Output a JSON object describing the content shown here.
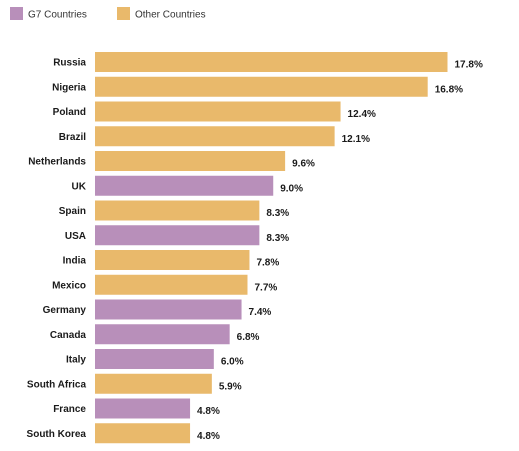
{
  "chart_data": {
    "type": "bar",
    "orientation": "horizontal",
    "title": "",
    "xlabel": "",
    "ylabel": "",
    "value_suffix": "%",
    "xlim": [
      0,
      18
    ],
    "grid": false,
    "legend_position": "top-left",
    "legend": [
      {
        "key": "g7",
        "label": "G7 Countries",
        "color": "#b88fba"
      },
      {
        "key": "other",
        "label": "Other Countries",
        "color": "#e9b96b"
      }
    ],
    "categories": [
      "Russia",
      "Nigeria",
      "Poland",
      "Brazil",
      "Netherlands",
      "UK",
      "Spain",
      "USA",
      "India",
      "Mexico",
      "Germany",
      "Canada",
      "Italy",
      "South Africa",
      "France",
      "South Korea"
    ],
    "values": [
      17.8,
      16.8,
      12.4,
      12.1,
      9.6,
      9.0,
      8.3,
      8.3,
      7.8,
      7.7,
      7.4,
      6.8,
      6.0,
      5.9,
      4.8,
      4.8
    ],
    "groups": [
      "other",
      "other",
      "other",
      "other",
      "other",
      "g7",
      "other",
      "g7",
      "other",
      "other",
      "g7",
      "g7",
      "g7",
      "other",
      "g7",
      "other"
    ]
  }
}
